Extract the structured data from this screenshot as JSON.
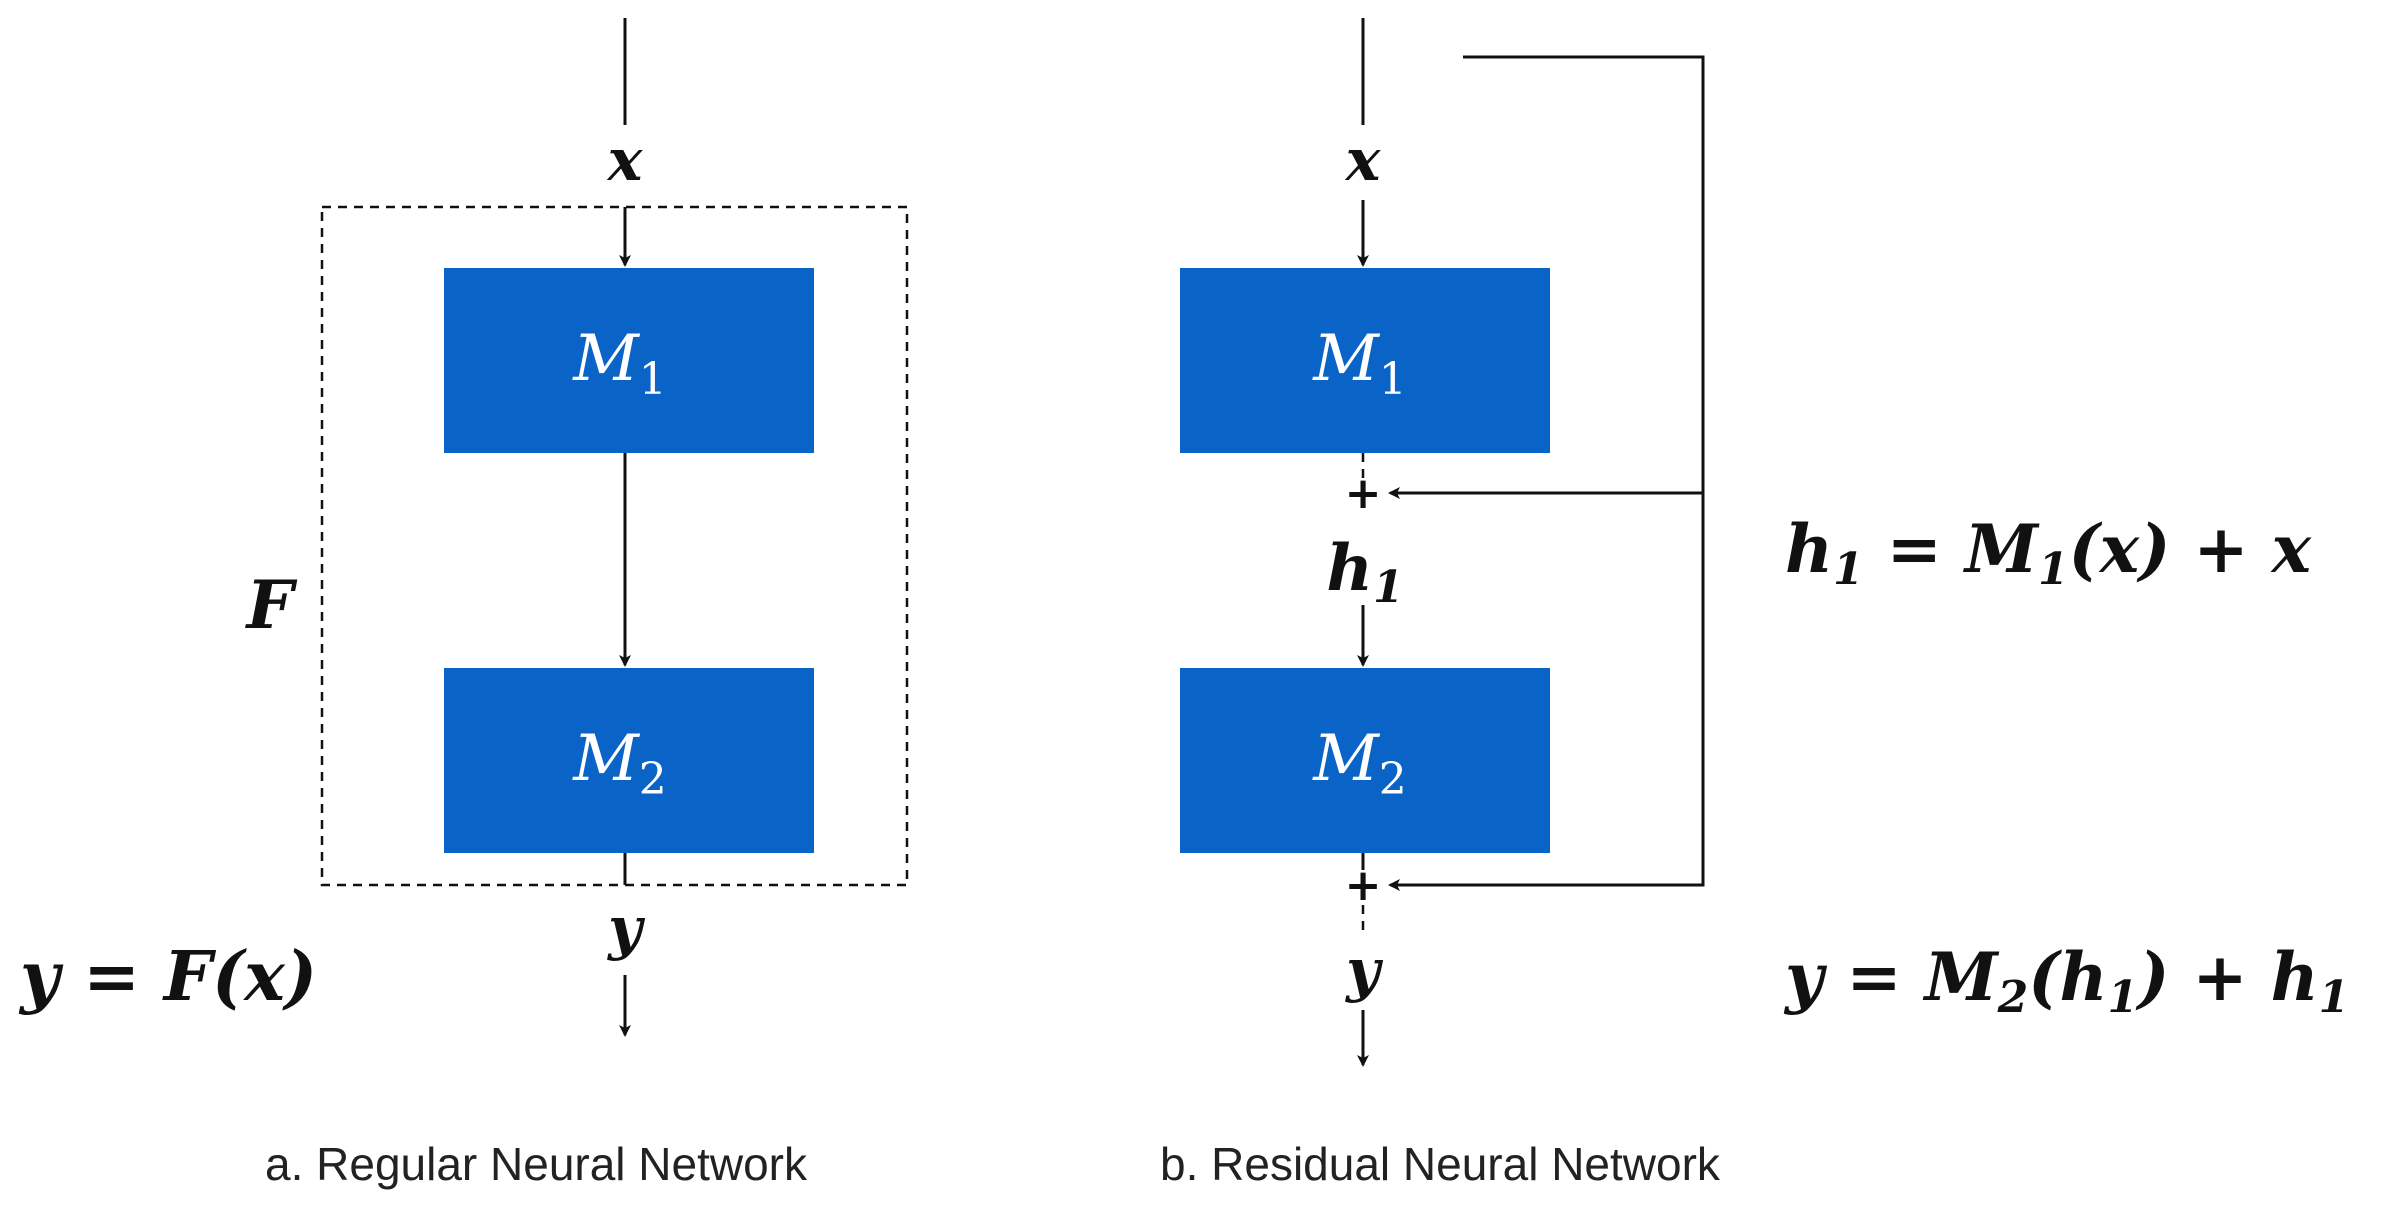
{
  "regular": {
    "input": "x",
    "box1": {
      "base": "M",
      "sub": "1"
    },
    "box2": {
      "base": "M",
      "sub": "2"
    },
    "wrapper": "F",
    "output": "y",
    "equation": "y = F(x)",
    "caption": "a. Regular Neural Network"
  },
  "residual": {
    "input": "x",
    "box1": {
      "base": "M",
      "sub": "1"
    },
    "box2": {
      "base": "M",
      "sub": "2"
    },
    "plus1": "+",
    "plus2": "+",
    "hidden": {
      "base": "h",
      "sub": "1"
    },
    "output": "y",
    "eq1": {
      "a": "h",
      "a_sub": "1",
      "b": " = M",
      "b_sub": "1",
      "c": "(x) + x"
    },
    "eq2": {
      "a": "y = M",
      "a_sub": "2",
      "b": "(h",
      "b_sub": "1",
      "c": ") + h",
      "c_sub": "1"
    },
    "caption": "b. Residual Neural Network"
  },
  "colors": {
    "block": "#0a63c6",
    "line": "#111111"
  }
}
